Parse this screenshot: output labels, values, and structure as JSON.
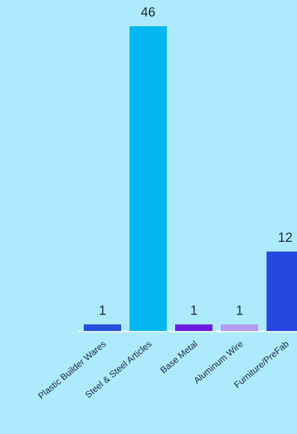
{
  "chart_data": {
    "type": "bar",
    "categories": [
      "Plastic Builder Wares",
      "Steel & Steel Articles",
      "Base Metal",
      "Aluminum Wire",
      "Furniture/PreFab"
    ],
    "values": [
      1,
      46,
      1,
      1,
      12
    ],
    "value_labels": [
      "1",
      "46",
      "1",
      "1",
      "12"
    ],
    "colors": [
      "#2450dc",
      "#03b8f0",
      "#6a1de0",
      "#b49cf5",
      "#2448e0"
    ],
    "ylim": [
      0,
      46
    ],
    "grid": false,
    "legend": "none",
    "title": "",
    "xlabel": "",
    "ylabel": ""
  }
}
